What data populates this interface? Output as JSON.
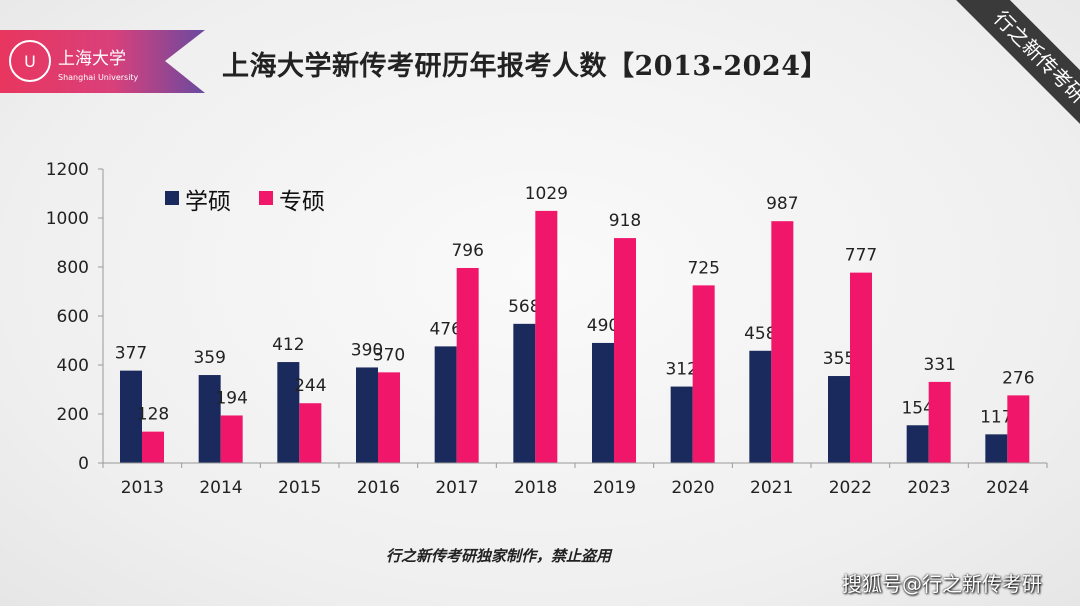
{
  "header": {
    "title": "上海大学新传考研历年报考人数【2013-2024】",
    "logo_cn": "上海大学",
    "logo_en": "Shanghai University",
    "corner_tag": "行之新传考研"
  },
  "footer": {
    "note": "行之新传考研独家制作，禁止盗用",
    "watermark": "搜狐号@行之新传考研"
  },
  "colors": {
    "xueshuo": "#1b2a5c",
    "zhuanshuo": "#f0176b"
  },
  "chart_data": {
    "type": "bar",
    "categories": [
      "2013",
      "2014",
      "2015",
      "2016",
      "2017",
      "2018",
      "2019",
      "2020",
      "2021",
      "2022",
      "2023",
      "2024"
    ],
    "series": [
      {
        "name": "学硕",
        "values": [
          377,
          359,
          412,
          390,
          476,
          568,
          490,
          312,
          458,
          355,
          154,
          117
        ]
      },
      {
        "name": "专硕",
        "values": [
          128,
          194,
          244,
          370,
          796,
          1029,
          918,
          725,
          987,
          777,
          331,
          276
        ]
      }
    ],
    "yticks": [
      "0",
      "200",
      "400",
      "600",
      "800",
      "1000",
      "1200"
    ],
    "ylim": [
      0,
      1200
    ],
    "legend": "top-left",
    "grid": false
  }
}
